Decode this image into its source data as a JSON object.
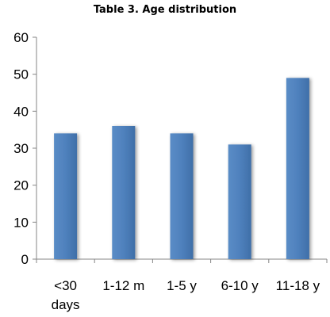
{
  "chart_data": {
    "type": "bar",
    "title": "Table 3. Age distribution",
    "xlabel": "",
    "ylabel": "",
    "categories": [
      "<30 days",
      "1-12 m",
      "1-5 y",
      "6-10 y",
      "11-18 y"
    ],
    "category_label_lines": [
      [
        "<30",
        "days"
      ],
      [
        "1-12 m"
      ],
      [
        "1-5 y"
      ],
      [
        "6-10 y"
      ],
      [
        "11-18 y"
      ]
    ],
    "values": [
      34,
      36,
      34,
      31,
      49
    ],
    "ylim": [
      0,
      60
    ],
    "yticks": [
      "0",
      "10",
      "20",
      "30",
      "40",
      "50",
      "60"
    ],
    "grid": false,
    "legend": "none",
    "bar_color": "#4F81BD"
  }
}
